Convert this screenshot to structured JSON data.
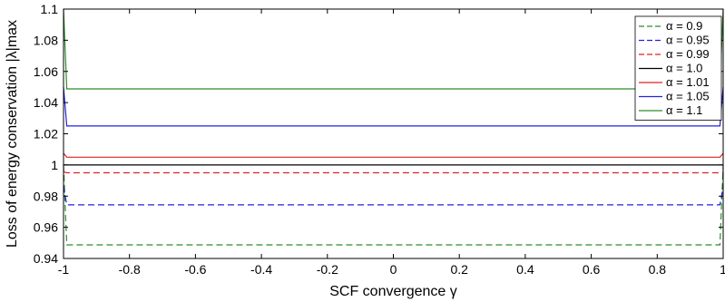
{
  "chart_data": {
    "type": "line",
    "xlabel": "SCF convergence γ",
    "ylabel": "Loss of energy conservation |λ|max",
    "xlim": [
      -1,
      1
    ],
    "ylim": [
      0.94,
      1.1
    ],
    "x_ticks": [
      "-1",
      "-0.8",
      "-0.6",
      "-0.4",
      "-0.2",
      "0",
      "0.2",
      "0.4",
      "0.6",
      "0.8",
      "1"
    ],
    "y_ticks": [
      "0.94",
      "0.96",
      "0.98",
      "1",
      "1.02",
      "1.04",
      "1.06",
      "1.08",
      "1.1"
    ],
    "grid": false,
    "legend_position": "top-right",
    "x": [
      -1.0,
      -0.99,
      0.99,
      1.0
    ],
    "series": [
      {
        "name": "α = 0.9",
        "color": "#2e8b2e",
        "dash": "dashed",
        "values": [
          1.0,
          0.9487,
          0.9487,
          1.0
        ]
      },
      {
        "name": "α = 0.95",
        "color": "#2222dd",
        "dash": "dashed",
        "values": [
          0.9862,
          0.9744,
          0.9744,
          0.9862
        ]
      },
      {
        "name": "α = 0.99",
        "color": "#dd2222",
        "dash": "dashed",
        "values": [
          0.9955,
          0.995,
          0.995,
          0.9955
        ]
      },
      {
        "name": "α = 1.0",
        "color": "#000000",
        "dash": "solid",
        "values": [
          1.0,
          1.0,
          1.0,
          1.0
        ]
      },
      {
        "name": "α = 1.01",
        "color": "#dd2222",
        "dash": "solid",
        "values": [
          1.0075,
          1.005,
          1.005,
          1.0075
        ]
      },
      {
        "name": "α = 1.05",
        "color": "#2222dd",
        "dash": "solid",
        "values": [
          1.05,
          1.025,
          1.025,
          1.05
        ]
      },
      {
        "name": "α = 1.1",
        "color": "#2e8b2e",
        "dash": "solid",
        "values": [
          1.1,
          1.0488,
          1.0488,
          1.1
        ]
      }
    ]
  }
}
